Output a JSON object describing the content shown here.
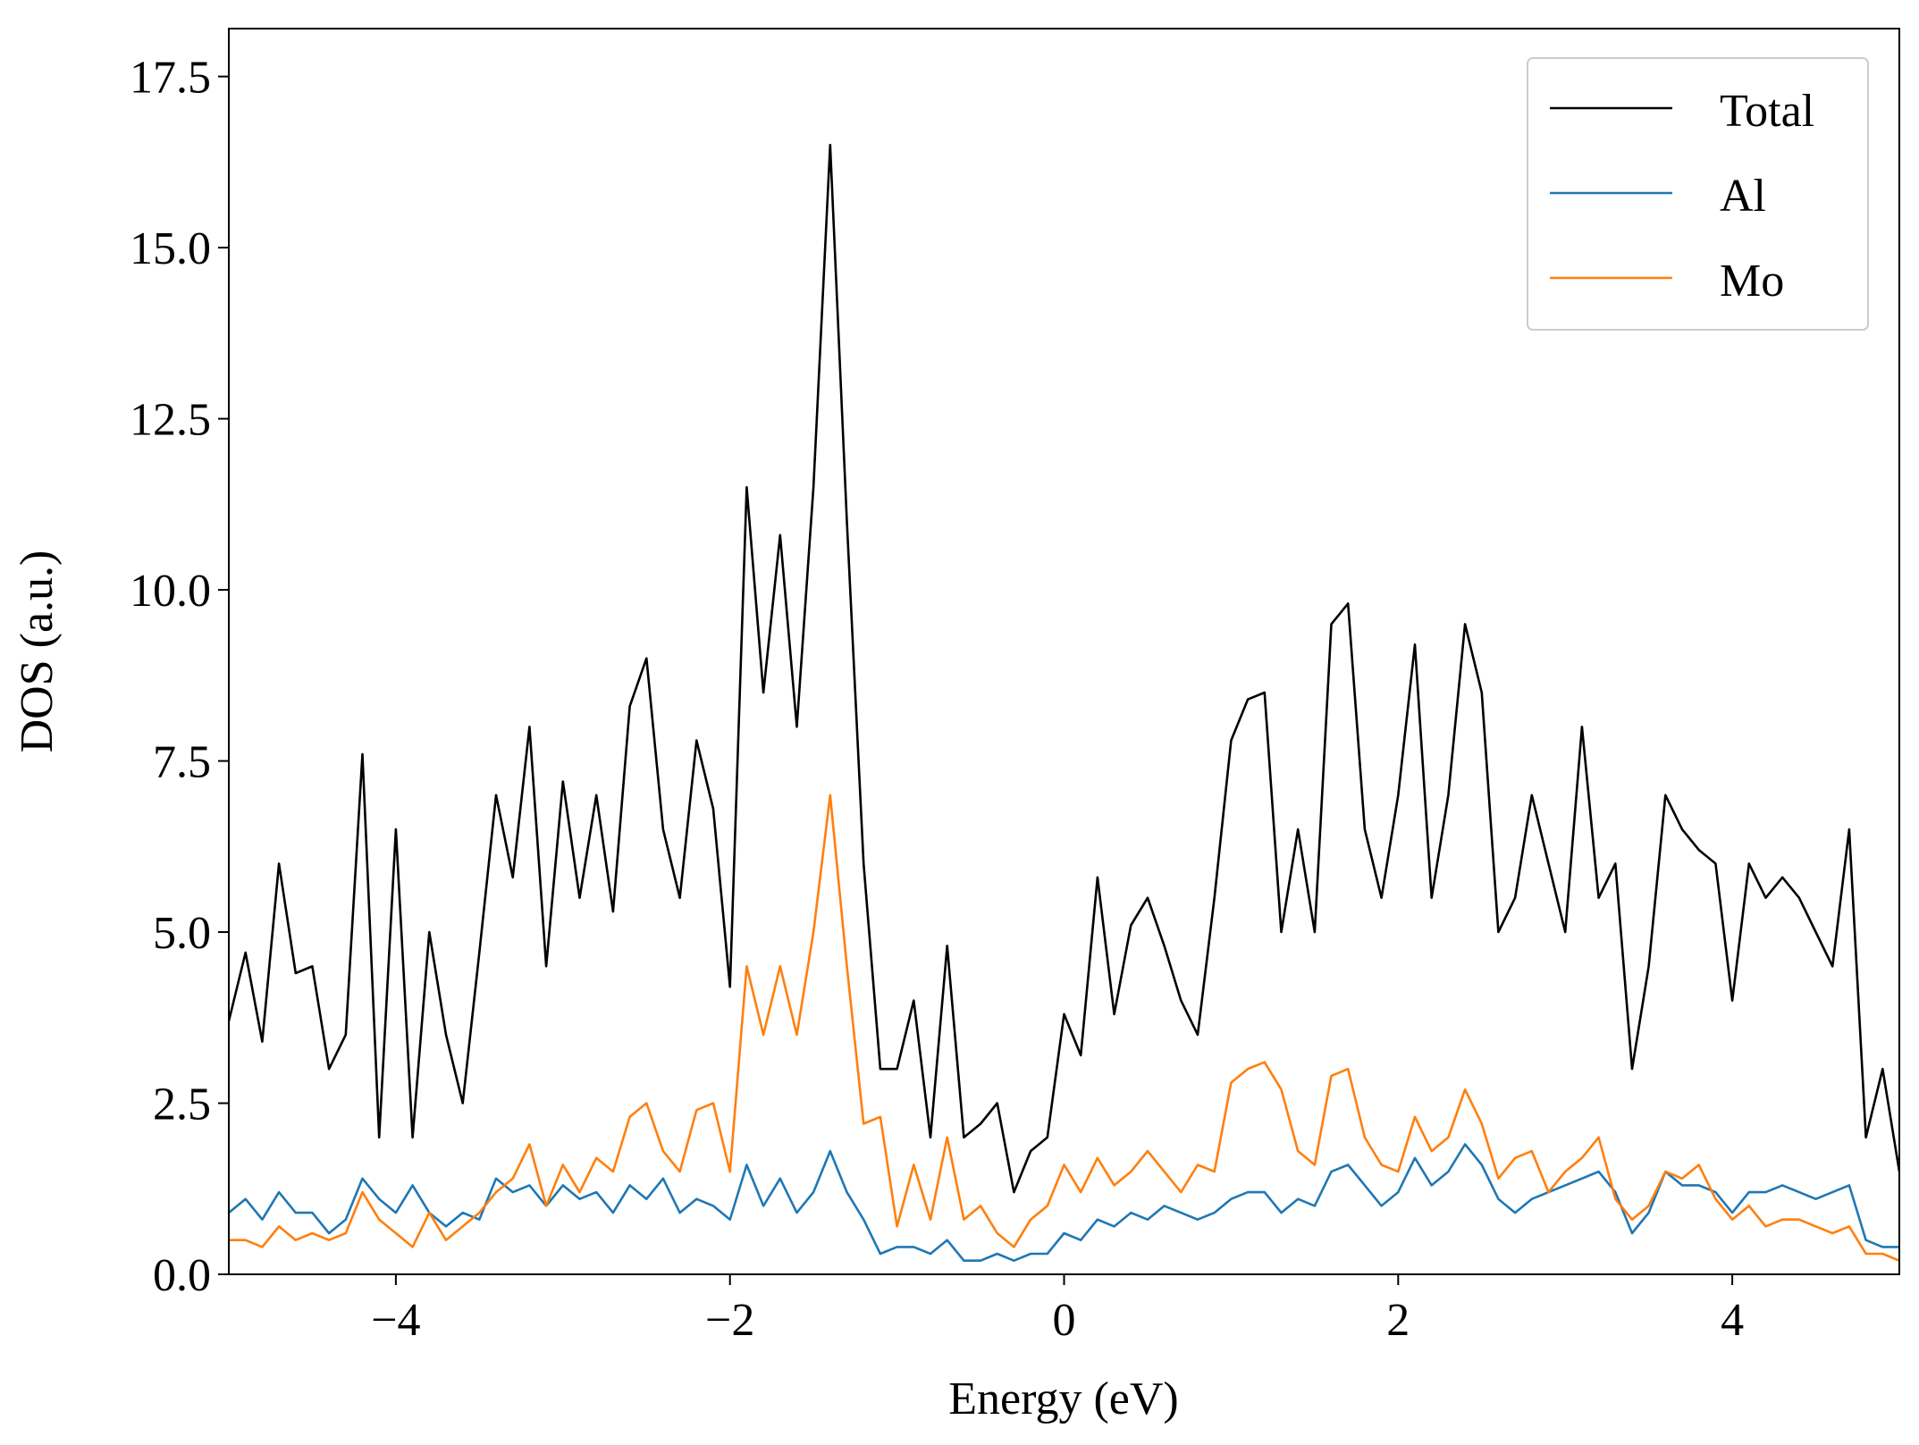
{
  "chart_data": {
    "type": "line",
    "xlabel": "Energy (eV)",
    "ylabel": "DOS (a.u.)",
    "x": [
      -5.0,
      -4.9,
      -4.8,
      -4.7,
      -4.6,
      -4.5,
      -4.4,
      -4.3,
      -4.2,
      -4.1,
      -4.0,
      -3.9,
      -3.8,
      -3.7,
      -3.6,
      -3.5,
      -3.4,
      -3.3,
      -3.2,
      -3.1,
      -3.0,
      -2.9,
      -2.8,
      -2.7,
      -2.6,
      -2.5,
      -2.4,
      -2.3,
      -2.2,
      -2.1,
      -2.0,
      -1.9,
      -1.8,
      -1.7,
      -1.6,
      -1.5,
      -1.4,
      -1.3,
      -1.2,
      -1.1,
      -1.0,
      -0.9,
      -0.8,
      -0.7,
      -0.6,
      -0.5,
      -0.4,
      -0.3,
      -0.2,
      -0.1,
      0.0,
      0.1,
      0.2,
      0.3,
      0.4,
      0.5,
      0.6,
      0.7,
      0.8,
      0.9,
      1.0,
      1.1,
      1.2,
      1.3,
      1.4,
      1.5,
      1.6,
      1.7,
      1.8,
      1.9,
      2.0,
      2.1,
      2.2,
      2.3,
      2.4,
      2.5,
      2.6,
      2.7,
      2.8,
      2.9,
      3.0,
      3.1,
      3.2,
      3.3,
      3.4,
      3.5,
      3.6,
      3.7,
      3.8,
      3.9,
      4.0,
      4.1,
      4.2,
      4.3,
      4.4,
      4.5,
      4.6,
      4.7,
      4.8,
      4.9,
      5.0
    ],
    "series": [
      {
        "name": "Total",
        "color": "#000000",
        "values": [
          3.7,
          4.7,
          3.4,
          6.0,
          4.4,
          4.5,
          3.0,
          3.5,
          7.6,
          2.0,
          6.5,
          2.0,
          5.0,
          3.5,
          2.5,
          4.7,
          7.0,
          5.8,
          8.0,
          4.5,
          7.2,
          5.5,
          7.0,
          5.3,
          8.3,
          9.0,
          6.5,
          5.5,
          7.8,
          6.8,
          4.2,
          11.5,
          8.5,
          10.8,
          8.0,
          11.5,
          16.5,
          11.0,
          6.0,
          3.0,
          3.0,
          4.0,
          2.0,
          4.8,
          2.0,
          2.2,
          2.5,
          1.2,
          1.8,
          2.0,
          3.8,
          3.2,
          5.8,
          3.8,
          5.1,
          5.5,
          4.8,
          4.0,
          3.5,
          5.5,
          7.8,
          8.4,
          8.5,
          5.0,
          6.5,
          5.0,
          9.5,
          9.8,
          6.5,
          5.5,
          7.0,
          9.2,
          5.5,
          7.0,
          9.5,
          8.5,
          5.0,
          5.5,
          7.0,
          6.0,
          5.0,
          8.0,
          5.5,
          6.0,
          3.0,
          4.5,
          7.0,
          6.5,
          6.2,
          6.0,
          4.0,
          6.0,
          5.5,
          5.8,
          5.5,
          5.0,
          4.5,
          6.5,
          2.0,
          3.0,
          1.5
        ]
      },
      {
        "name": "Al",
        "color": "#1f77b4",
        "values": [
          0.9,
          1.1,
          0.8,
          1.2,
          0.9,
          0.9,
          0.6,
          0.8,
          1.4,
          1.1,
          0.9,
          1.3,
          0.9,
          0.7,
          0.9,
          0.8,
          1.4,
          1.2,
          1.3,
          1.0,
          1.3,
          1.1,
          1.2,
          0.9,
          1.3,
          1.1,
          1.4,
          0.9,
          1.1,
          1.0,
          0.8,
          1.6,
          1.0,
          1.4,
          0.9,
          1.2,
          1.8,
          1.2,
          0.8,
          0.3,
          0.4,
          0.4,
          0.3,
          0.5,
          0.2,
          0.2,
          0.3,
          0.2,
          0.3,
          0.3,
          0.6,
          0.5,
          0.8,
          0.7,
          0.9,
          0.8,
          1.0,
          0.9,
          0.8,
          0.9,
          1.1,
          1.2,
          1.2,
          0.9,
          1.1,
          1.0,
          1.5,
          1.6,
          1.3,
          1.0,
          1.2,
          1.7,
          1.3,
          1.5,
          1.9,
          1.6,
          1.1,
          0.9,
          1.1,
          1.2,
          1.3,
          1.4,
          1.5,
          1.2,
          0.6,
          0.9,
          1.5,
          1.3,
          1.3,
          1.2,
          0.9,
          1.2,
          1.2,
          1.3,
          1.2,
          1.1,
          1.2,
          1.3,
          0.5,
          0.4,
          0.4
        ]
      },
      {
        "name": "Mo",
        "color": "#ff7f0e",
        "values": [
          0.5,
          0.5,
          0.4,
          0.7,
          0.5,
          0.6,
          0.5,
          0.6,
          1.2,
          0.8,
          0.6,
          0.4,
          0.9,
          0.5,
          0.7,
          0.9,
          1.2,
          1.4,
          1.9,
          1.0,
          1.6,
          1.2,
          1.7,
          1.5,
          2.3,
          2.5,
          1.8,
          1.5,
          2.4,
          2.5,
          1.5,
          4.5,
          3.5,
          4.5,
          3.5,
          5.0,
          7.0,
          4.5,
          2.2,
          2.3,
          0.7,
          1.6,
          0.8,
          2.0,
          0.8,
          1.0,
          0.6,
          0.4,
          0.8,
          1.0,
          1.6,
          1.2,
          1.7,
          1.3,
          1.5,
          1.8,
          1.5,
          1.2,
          1.6,
          1.5,
          2.8,
          3.0,
          3.1,
          2.7,
          1.8,
          1.6,
          2.9,
          3.0,
          2.0,
          1.6,
          1.5,
          2.3,
          1.8,
          2.0,
          2.7,
          2.2,
          1.4,
          1.7,
          1.8,
          1.2,
          1.5,
          1.7,
          2.0,
          1.1,
          0.8,
          1.0,
          1.5,
          1.4,
          1.6,
          1.1,
          0.8,
          1.0,
          0.7,
          0.8,
          0.8,
          0.7,
          0.6,
          0.7,
          0.3,
          0.3,
          0.2
        ]
      }
    ],
    "xlim": [
      -5,
      5
    ],
    "xticks": [
      {
        "value": -4,
        "label": "−4"
      },
      {
        "value": -2,
        "label": "−2"
      },
      0,
      2,
      4
    ],
    "ylim": [
      0,
      18.2
    ],
    "yticks": [
      {
        "value": 0,
        "label": "0.0"
      },
      2.5,
      {
        "value": 5,
        "label": "5.0"
      },
      7.5,
      {
        "value": 10,
        "label": "10.0"
      },
      12.5,
      {
        "value": 15,
        "label": "15.0"
      },
      17.5
    ],
    "legend": "upper right"
  }
}
